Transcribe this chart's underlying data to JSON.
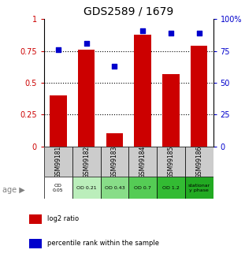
{
  "title": "GDS2589 / 1679",
  "samples": [
    "GSM99181",
    "GSM99182",
    "GSM99183",
    "GSM99184",
    "GSM99185",
    "GSM99186"
  ],
  "log2_ratio": [
    0.4,
    0.76,
    0.1,
    0.88,
    0.57,
    0.79
  ],
  "percentile_rank": [
    76,
    81,
    63,
    91,
    89,
    89
  ],
  "bar_color": "#cc0000",
  "dot_color": "#0000cc",
  "ylim_left": [
    0,
    1.0
  ],
  "ylim_right": [
    0,
    100
  ],
  "yticks_left": [
    0,
    0.25,
    0.5,
    0.75,
    1.0
  ],
  "ytick_labels_left": [
    "0",
    "0.25",
    "0.5",
    "0.75",
    "1"
  ],
  "yticks_right": [
    0,
    25,
    50,
    75,
    100
  ],
  "ytick_labels_right": [
    "0",
    "25",
    "50",
    "75",
    "100%"
  ],
  "age_labels": [
    "OD\n0.05",
    "OD 0.21",
    "OD 0.43",
    "OD 0.7",
    "OD 1.2",
    "stationar\ny phase"
  ],
  "age_colors": [
    "#ffffff",
    "#bbeebb",
    "#88dd88",
    "#55cc55",
    "#33bb33",
    "#22aa22"
  ],
  "sample_bg_color": "#cccccc",
  "legend_red_label": "log2 ratio",
  "legend_blue_label": "percentile rank within the sample"
}
